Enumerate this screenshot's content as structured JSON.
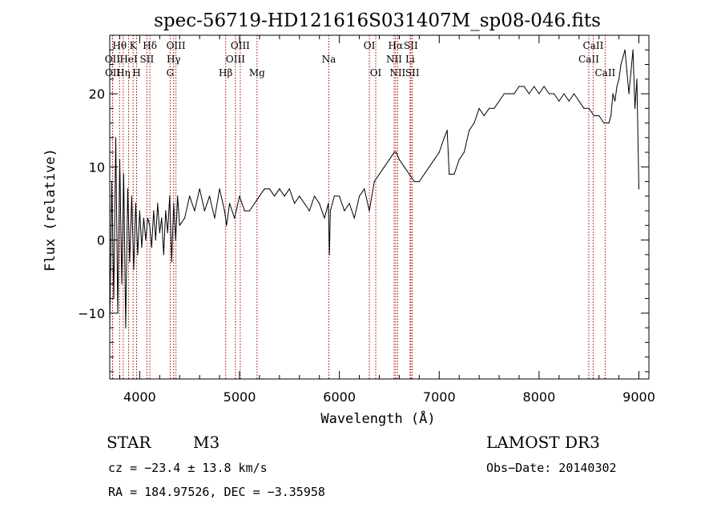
{
  "chart_data": {
    "type": "line",
    "title": "spec-56719-HD121616S031407M_sp08-046.fits",
    "xlabel": "Wavelength (Å)",
    "ylabel": "Flux (relative)",
    "xlim": [
      3700,
      9100
    ],
    "ylim": [
      -19,
      28
    ],
    "xticks": [
      {
        "value": 4000,
        "label": "4000"
      },
      {
        "value": 5000,
        "label": "5000"
      },
      {
        "value": 6000,
        "label": "6000"
      },
      {
        "value": 7000,
        "label": "7000"
      },
      {
        "value": 8000,
        "label": "8000"
      },
      {
        "value": 9000,
        "label": "9000"
      }
    ],
    "yticks": [
      {
        "value": -10,
        "label": "−10"
      },
      {
        "value": 0,
        "label": "0"
      },
      {
        "value": 10,
        "label": "10"
      },
      {
        "value": 20,
        "label": "20"
      }
    ],
    "series": [
      {
        "name": "flux",
        "x": [
          3700,
          3720,
          3740,
          3760,
          3780,
          3800,
          3820,
          3840,
          3860,
          3880,
          3900,
          3920,
          3940,
          3960,
          3980,
          4000,
          4020,
          4040,
          4060,
          4080,
          4100,
          4120,
          4140,
          4160,
          4180,
          4200,
          4220,
          4240,
          4260,
          4280,
          4300,
          4320,
          4340,
          4360,
          4380,
          4400,
          4450,
          4500,
          4550,
          4600,
          4650,
          4700,
          4750,
          4800,
          4850,
          4870,
          4900,
          4950,
          5000,
          5050,
          5100,
          5150,
          5200,
          5250,
          5300,
          5350,
          5400,
          5450,
          5500,
          5550,
          5600,
          5650,
          5700,
          5750,
          5800,
          5850,
          5890,
          5900,
          5910,
          5950,
          6000,
          6050,
          6100,
          6150,
          6200,
          6250,
          6300,
          6350,
          6400,
          6450,
          6500,
          6550,
          6570,
          6600,
          6650,
          6700,
          6750,
          6800,
          6850,
          6900,
          6950,
          7000,
          7050,
          7080,
          7100,
          7150,
          7200,
          7250,
          7300,
          7350,
          7400,
          7450,
          7500,
          7550,
          7600,
          7650,
          7700,
          7750,
          7800,
          7850,
          7900,
          7950,
          8000,
          8050,
          8100,
          8150,
          8200,
          8250,
          8300,
          8350,
          8400,
          8450,
          8500,
          8550,
          8600,
          8650,
          8700,
          8720,
          8740,
          8760,
          8780,
          8800,
          8820,
          8840,
          8860,
          8880,
          8900,
          8920,
          8940,
          8960,
          8980,
          9000
        ],
        "values": [
          -12,
          8,
          -8,
          14,
          -10,
          11,
          -6,
          9,
          -12,
          7,
          -3,
          6,
          -4,
          5,
          -2,
          4,
          -1,
          3,
          0,
          3,
          2,
          -1,
          4,
          0,
          5,
          1,
          3,
          -2,
          4,
          1,
          6,
          -3,
          5,
          0,
          6,
          2,
          3,
          6,
          4,
          7,
          4,
          6,
          3,
          7,
          4,
          2,
          5,
          3,
          6,
          4,
          4,
          5,
          6,
          7,
          7,
          6,
          7,
          6,
          7,
          5,
          6,
          5,
          4,
          6,
          5,
          3,
          5,
          -2,
          4,
          6,
          6,
          4,
          5,
          3,
          6,
          7,
          4,
          8,
          9,
          10,
          11,
          12,
          12,
          11,
          10,
          9,
          8,
          8,
          9,
          10,
          11,
          12,
          14,
          15,
          9,
          9,
          11,
          12,
          15,
          16,
          18,
          17,
          18,
          18,
          19,
          20,
          20,
          20,
          21,
          21,
          20,
          21,
          20,
          21,
          20,
          20,
          19,
          20,
          19,
          20,
          19,
          18,
          18,
          17,
          17,
          16,
          16,
          17,
          20,
          19,
          21,
          22,
          24,
          25,
          26,
          23,
          20,
          23,
          26,
          18,
          22,
          7
        ]
      }
    ],
    "line_markers": [
      {
        "name": "OII",
        "wavelength": 3727,
        "row": 2
      },
      {
        "name": "OII",
        "wavelength": 3729,
        "row": 3
      },
      {
        "name": "Hθ",
        "wavelength": 3798,
        "row": 1
      },
      {
        "name": "Hη",
        "wavelength": 3835,
        "row": 3
      },
      {
        "name": "HeI",
        "wavelength": 3889,
        "row": 2
      },
      {
        "name": "K",
        "wavelength": 3934,
        "row": 1
      },
      {
        "name": "H",
        "wavelength": 3969,
        "row": 3
      },
      {
        "name": "SII",
        "wavelength": 4072,
        "row": 2
      },
      {
        "name": "Hδ",
        "wavelength": 4102,
        "row": 1
      },
      {
        "name": "G",
        "wavelength": 4305,
        "row": 3
      },
      {
        "name": "Hγ",
        "wavelength": 4340,
        "row": 2
      },
      {
        "name": "OIII",
        "wavelength": 4363,
        "row": 1
      },
      {
        "name": "Hβ",
        "wavelength": 4861,
        "row": 3
      },
      {
        "name": "OIII",
        "wavelength": 4959,
        "row": 2
      },
      {
        "name": "OIII",
        "wavelength": 5007,
        "row": 1
      },
      {
        "name": "Mg",
        "wavelength": 5175,
        "row": 3
      },
      {
        "name": "Na",
        "wavelength": 5894,
        "row": 2
      },
      {
        "name": "OI",
        "wavelength": 6300,
        "row": 1
      },
      {
        "name": "OI",
        "wavelength": 6364,
        "row": 3
      },
      {
        "name": "NII",
        "wavelength": 6548,
        "row": 2
      },
      {
        "name": "Hα",
        "wavelength": 6563,
        "row": 1
      },
      {
        "name": "NII",
        "wavelength": 6583,
        "row": 3
      },
      {
        "name": "Li",
        "wavelength": 6708,
        "row": 2
      },
      {
        "name": "SII",
        "wavelength": 6716,
        "row": 1
      },
      {
        "name": "SII",
        "wavelength": 6731,
        "row": 3
      },
      {
        "name": "CaII",
        "wavelength": 8498,
        "row": 2
      },
      {
        "name": "CaII",
        "wavelength": 8542,
        "row": 1
      },
      {
        "name": "CaII",
        "wavelength": 8662,
        "row": 3
      }
    ],
    "marker_color": "#aa0000",
    "line_color": "#000000"
  },
  "info": {
    "object_class": "STAR",
    "subclass": "M3",
    "survey": "LAMOST DR3",
    "cz": "cz = −23.4 ± 13.8 km/s",
    "obs_date": "Obs−Date: 20140302",
    "coords": "RA = 184.97526, DEC =  −3.35958"
  }
}
